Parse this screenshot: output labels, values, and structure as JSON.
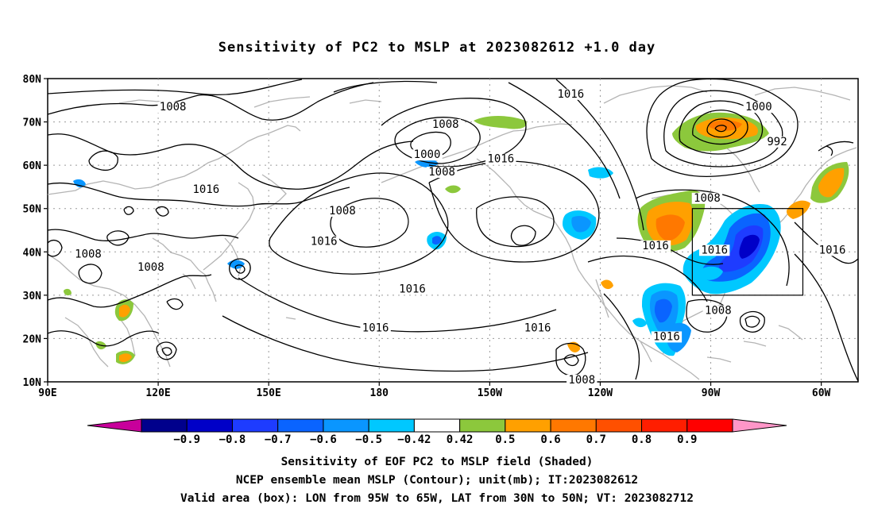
{
  "title": "Sensitivity of PC2 to MSLP at 2023082612 +1.0 day",
  "lat_labels": [
    "80N",
    "70N",
    "60N",
    "50N",
    "40N",
    "30N",
    "20N",
    "10N"
  ],
  "lon_labels": [
    "90E",
    "120E",
    "150E",
    "180",
    "150W",
    "120W",
    "90W",
    "60W"
  ],
  "contour_labels": [
    {
      "text": "1008",
      "lon": 124,
      "lat": 73
    },
    {
      "text": "1016",
      "lon": 133,
      "lat": 54
    },
    {
      "text": "1008",
      "lon": 101,
      "lat": 39
    },
    {
      "text": "1008",
      "lon": 118,
      "lat": 36
    },
    {
      "text": "1016",
      "lon": 165,
      "lat": 42
    },
    {
      "text": "1008",
      "lon": 170,
      "lat": 49
    },
    {
      "text": "1008",
      "lon": -162,
      "lat": 69
    },
    {
      "text": "1000",
      "lon": -167,
      "lat": 62
    },
    {
      "text": "1008",
      "lon": -163,
      "lat": 58
    },
    {
      "text": "1016",
      "lon": -147,
      "lat": 61
    },
    {
      "text": "1016",
      "lon": -128,
      "lat": 76
    },
    {
      "text": "1016",
      "lon": -171,
      "lat": 31
    },
    {
      "text": "1016",
      "lon": 179,
      "lat": 22
    },
    {
      "text": "1016",
      "lon": -137,
      "lat": 22
    },
    {
      "text": "1008",
      "lon": -125,
      "lat": 10
    },
    {
      "text": "1016",
      "lon": -102,
      "lat": 20
    },
    {
      "text": "1016",
      "lon": -105,
      "lat": 41
    },
    {
      "text": "1016",
      "lon": -89,
      "lat": 40
    },
    {
      "text": "1008",
      "lon": -88,
      "lat": 26
    },
    {
      "text": "1008",
      "lon": -91,
      "lat": 52
    },
    {
      "text": "1000",
      "lon": -77,
      "lat": 73
    },
    {
      "text": "992",
      "lon": -72,
      "lat": 65
    },
    {
      "text": "1016",
      "lon": -57,
      "lat": 40
    }
  ],
  "colorbar": {
    "labels": [
      "−0.9",
      "−0.8",
      "−0.7",
      "−0.6",
      "−0.5",
      "−0.42",
      "0.42",
      "0.5",
      "0.6",
      "0.7",
      "0.8",
      "0.9"
    ],
    "colors": [
      "#c8009b",
      "#00008c",
      "#0000c8",
      "#1e3cff",
      "#0a64ff",
      "#0a96ff",
      "#00c8ff",
      "#ffffff",
      "#8cc83c",
      "#ffa000",
      "#ff7800",
      "#ff5000",
      "#ff1e00",
      "#ff0000",
      "#ff96c8"
    ]
  },
  "captions": {
    "line1": "Sensitivity of EOF PC2 to MSLP field (Shaded)",
    "line2": "NCEP ensemble mean MSLP (Contour); unit(mb); IT:2023082612",
    "line3": "Valid area (box): LON from 95W to 65W, LAT from 30N to 50N; VT: 2023082712"
  },
  "valid_area": {
    "lon_min": -95,
    "lon_max": -65,
    "lat_min": 30,
    "lat_max": 50
  },
  "map_extent": {
    "lon_min": 90,
    "lon_max": 310,
    "lat_min": 10,
    "lat_max": 80
  }
}
